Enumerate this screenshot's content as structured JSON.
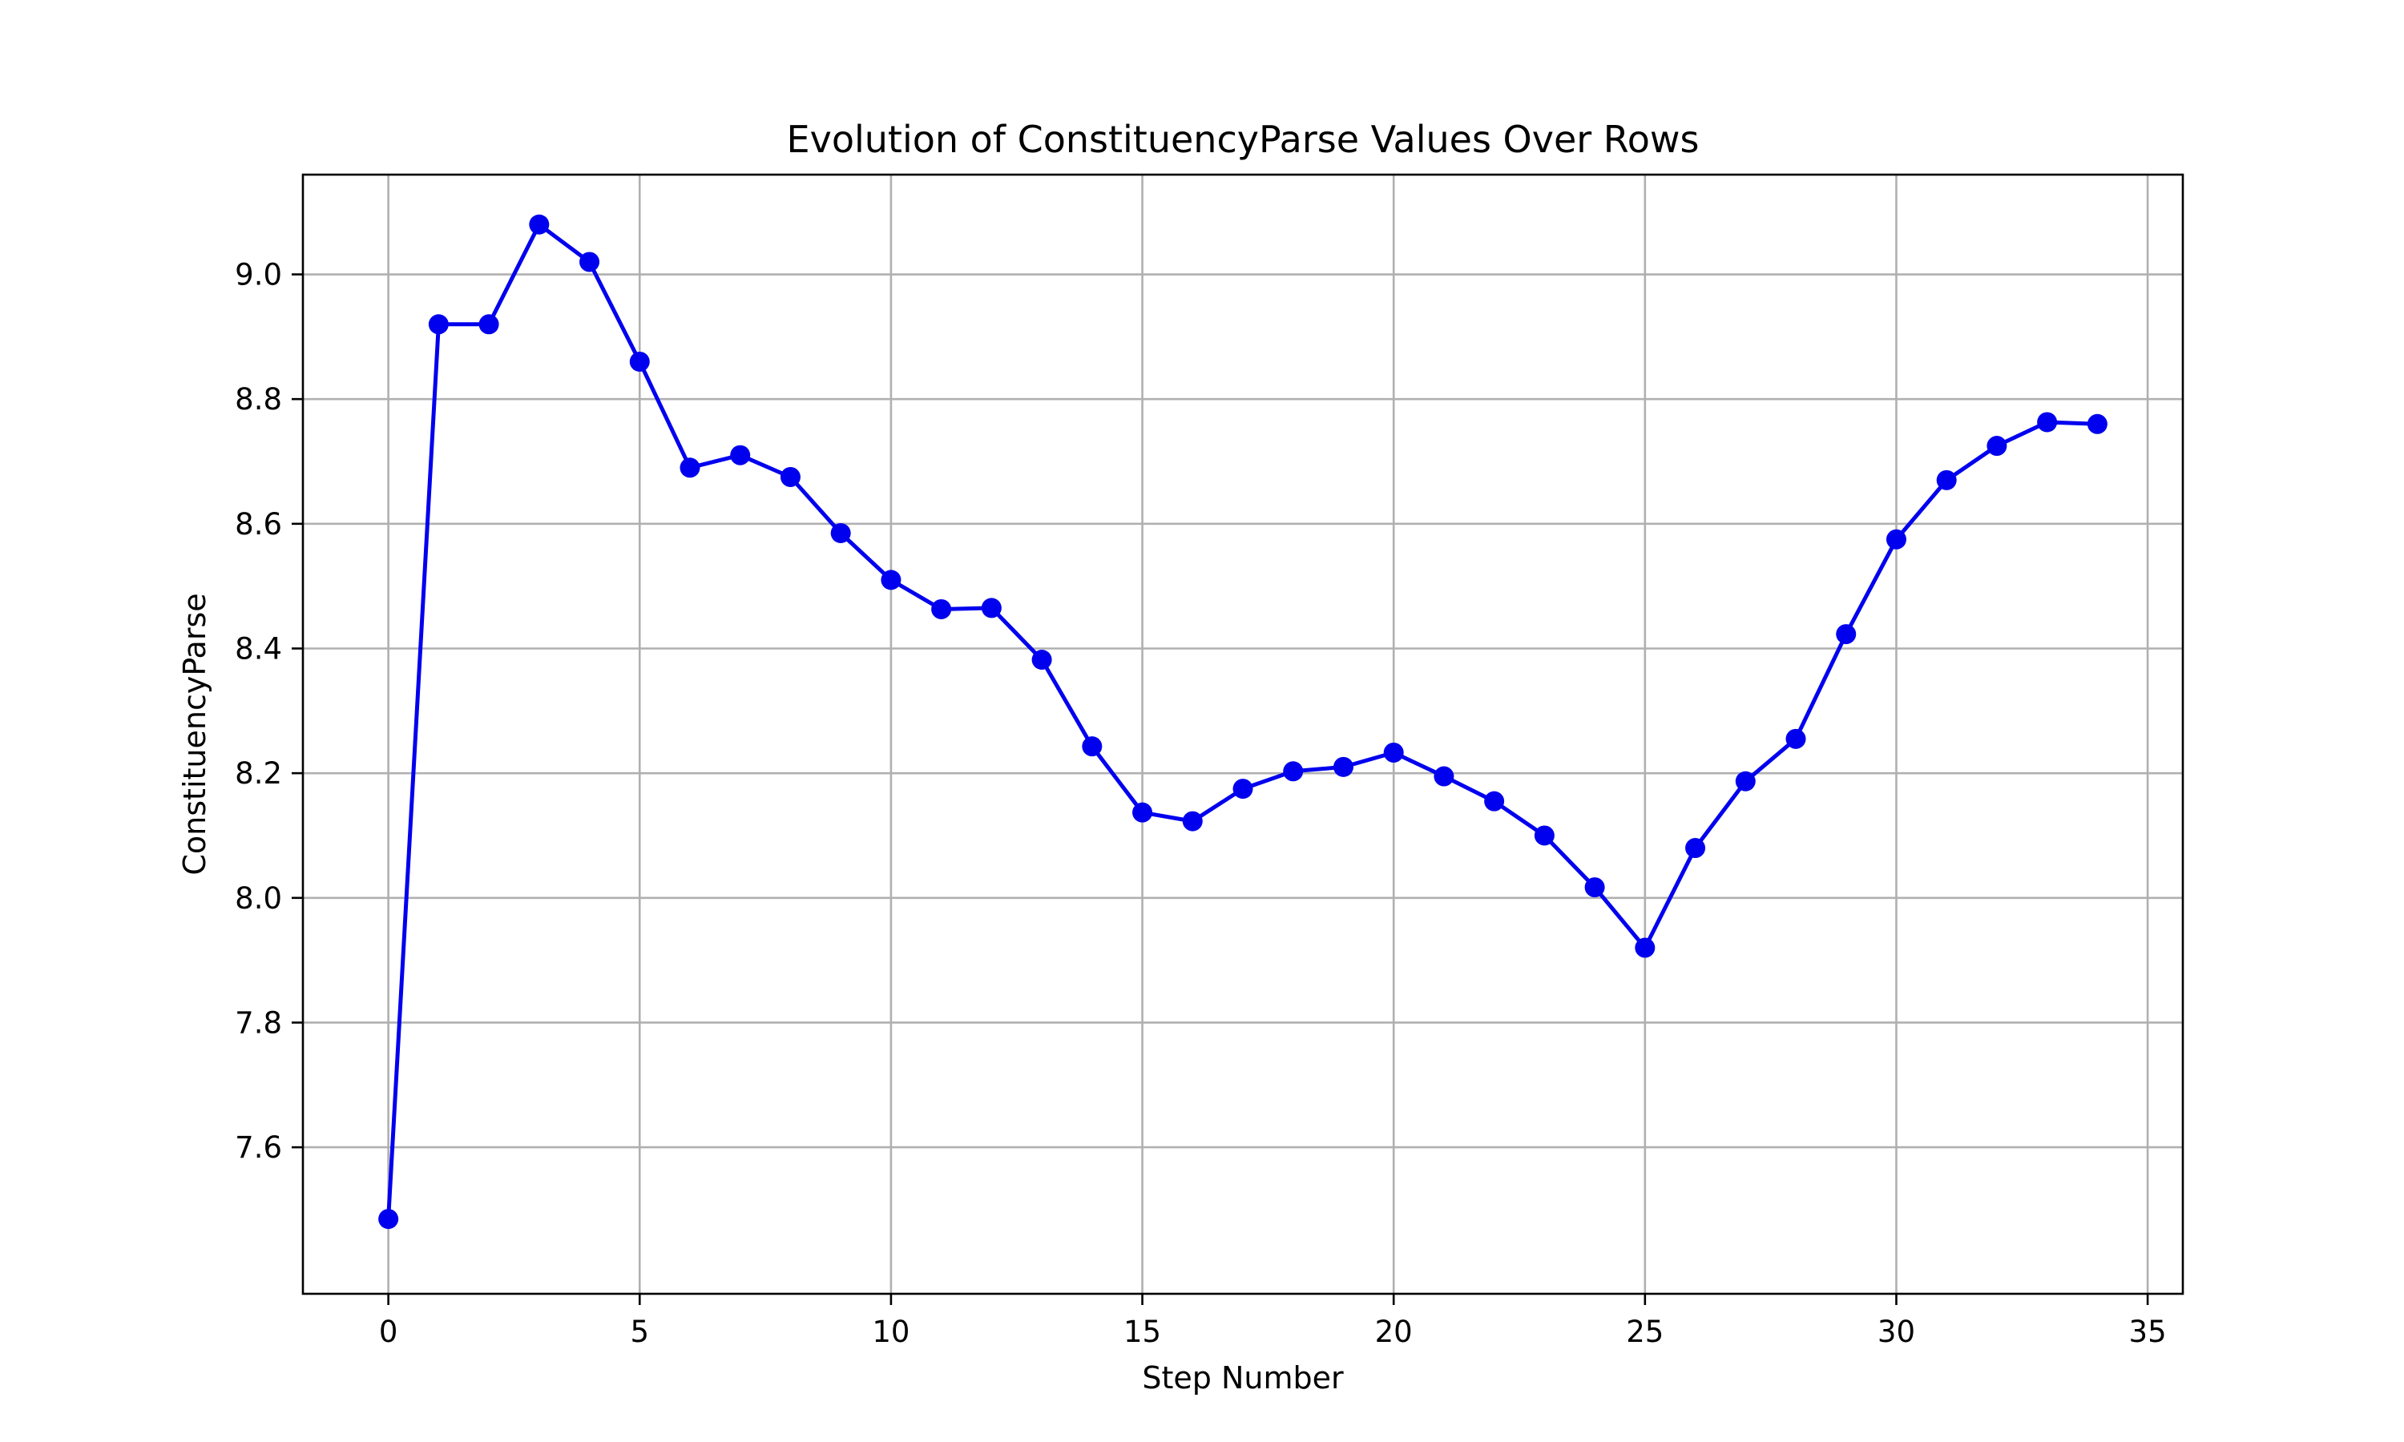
{
  "chart_data": {
    "type": "line",
    "title": "Evolution of ConstituencyParse Values Over Rows",
    "xlabel": "Step Number",
    "ylabel": "ConstituencyParse",
    "xlim": [
      -1.7,
      35.7
    ],
    "ylim": [
      7.365,
      9.16
    ],
    "xticks": [
      0,
      5,
      10,
      15,
      20,
      25,
      30,
      35
    ],
    "yticks": [
      7.6,
      7.8,
      8.0,
      8.2,
      8.4,
      8.6,
      8.8,
      9.0
    ],
    "xtick_labels": [
      "0",
      "5",
      "10",
      "15",
      "20",
      "25",
      "30",
      "35"
    ],
    "ytick_labels": [
      "7.6",
      "7.8",
      "8.0",
      "8.2",
      "8.4",
      "8.6",
      "8.8",
      "9.0"
    ],
    "grid": true,
    "series": [
      {
        "color": "#0000ee",
        "marker": "circle",
        "x": [
          0,
          1,
          2,
          3,
          4,
          5,
          6,
          7,
          8,
          9,
          10,
          11,
          12,
          13,
          14,
          15,
          16,
          17,
          18,
          19,
          20,
          21,
          22,
          23,
          24,
          25,
          26,
          27,
          28,
          29,
          30,
          31,
          32,
          33,
          34
        ],
        "y": [
          7.485,
          8.92,
          8.92,
          9.08,
          9.02,
          8.86,
          8.69,
          8.71,
          8.675,
          8.585,
          8.51,
          8.463,
          8.465,
          8.382,
          8.243,
          8.137,
          8.123,
          8.175,
          8.203,
          8.21,
          8.233,
          8.195,
          8.155,
          8.1,
          8.017,
          7.92,
          8.08,
          8.187,
          8.255,
          8.423,
          8.575,
          8.67,
          8.725,
          8.763,
          8.76
        ]
      }
    ]
  }
}
